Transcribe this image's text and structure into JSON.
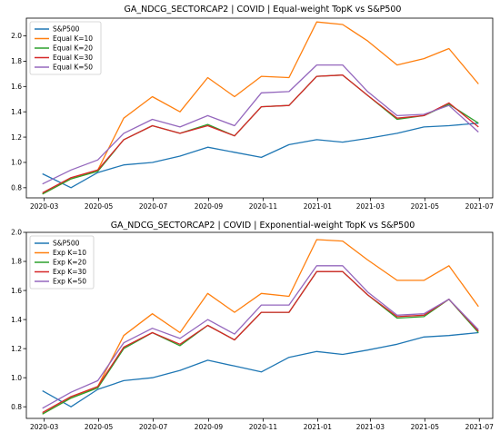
{
  "chart_data": [
    {
      "type": "line",
      "title": "GA_NDCG_SECTORCAP2 | COVID | Equal-weight TopK vs S&P500",
      "x": [
        "2020-02-28",
        "2020-03-31",
        "2020-04-30",
        "2020-05-29",
        "2020-06-30",
        "2020-07-31",
        "2020-08-31",
        "2020-09-30",
        "2020-10-30",
        "2020-11-30",
        "2020-12-31",
        "2021-01-29",
        "2021-02-26",
        "2021-03-31",
        "2021-04-30",
        "2021-05-28",
        "2021-06-30"
      ],
      "xticks": [
        "2020-03",
        "2020-05",
        "2020-07",
        "2020-09",
        "2020-11",
        "2021-01",
        "2021-03",
        "2021-05",
        "2021-07"
      ],
      "yticks": [
        "0.8",
        "1.0",
        "1.2",
        "1.4",
        "1.6",
        "1.8",
        "2.0"
      ],
      "ylim": [
        0.72,
        2.14
      ],
      "legend_loc": "upper-left",
      "grid": false,
      "series": [
        {
          "name": "S&P500",
          "color": "#1f77b4",
          "values": [
            0.91,
            0.8,
            0.92,
            0.98,
            1.0,
            1.05,
            1.12,
            1.08,
            1.04,
            1.14,
            1.18,
            1.16,
            1.19,
            1.23,
            1.28,
            1.29,
            1.31
          ]
        },
        {
          "name": "Equal K=10",
          "color": "#ff7f0e",
          "values": [
            0.75,
            0.87,
            0.94,
            1.35,
            1.52,
            1.4,
            1.67,
            1.52,
            1.68,
            1.67,
            2.11,
            2.09,
            1.96,
            1.77,
            1.82,
            1.9,
            1.62
          ]
        },
        {
          "name": "Equal K=20",
          "color": "#2ca02c",
          "values": [
            0.75,
            0.87,
            0.93,
            1.18,
            1.29,
            1.23,
            1.3,
            1.21,
            1.44,
            1.45,
            1.68,
            1.69,
            1.53,
            1.34,
            1.37,
            1.46,
            1.31
          ]
        },
        {
          "name": "Equal K=30",
          "color": "#d62728",
          "values": [
            0.76,
            0.88,
            0.94,
            1.18,
            1.29,
            1.23,
            1.29,
            1.21,
            1.44,
            1.45,
            1.68,
            1.69,
            1.53,
            1.35,
            1.37,
            1.47,
            1.28
          ]
        },
        {
          "name": "Equal K=50",
          "color": "#9467bd",
          "values": [
            0.83,
            0.94,
            1.02,
            1.23,
            1.34,
            1.28,
            1.37,
            1.29,
            1.55,
            1.56,
            1.77,
            1.77,
            1.56,
            1.37,
            1.38,
            1.45,
            1.24
          ]
        }
      ]
    },
    {
      "type": "line",
      "title": "GA_NDCG_SECTORCAP2 | COVID | Exponential-weight TopK vs S&P500",
      "x": [
        "2020-02-28",
        "2020-03-31",
        "2020-04-30",
        "2020-05-29",
        "2020-06-30",
        "2020-07-31",
        "2020-08-31",
        "2020-09-30",
        "2020-10-30",
        "2020-11-30",
        "2020-12-31",
        "2021-01-29",
        "2021-02-26",
        "2021-03-31",
        "2021-04-30",
        "2021-05-28",
        "2021-06-30"
      ],
      "xticks": [
        "2020-03",
        "2020-05",
        "2020-07",
        "2020-09",
        "2020-11",
        "2021-01",
        "2021-03",
        "2021-05",
        "2021-07"
      ],
      "yticks": [
        "0.8",
        "1.0",
        "1.2",
        "1.4",
        "1.6",
        "1.8",
        "2.0"
      ],
      "ylim": [
        0.72,
        2.0
      ],
      "legend_loc": "upper-left",
      "grid": false,
      "series": [
        {
          "name": "S&P500",
          "color": "#1f77b4",
          "values": [
            0.91,
            0.8,
            0.92,
            0.98,
            1.0,
            1.05,
            1.12,
            1.08,
            1.04,
            1.14,
            1.18,
            1.16,
            1.19,
            1.23,
            1.28,
            1.29,
            1.31
          ]
        },
        {
          "name": "Exp K=10",
          "color": "#ff7f0e",
          "values": [
            0.75,
            0.86,
            0.94,
            1.29,
            1.44,
            1.31,
            1.58,
            1.45,
            1.58,
            1.56,
            1.95,
            1.94,
            1.81,
            1.67,
            1.67,
            1.77,
            1.49
          ]
        },
        {
          "name": "Exp K=20",
          "color": "#2ca02c",
          "values": [
            0.75,
            0.86,
            0.93,
            1.2,
            1.31,
            1.22,
            1.36,
            1.26,
            1.45,
            1.45,
            1.73,
            1.73,
            1.57,
            1.41,
            1.42,
            1.54,
            1.31
          ]
        },
        {
          "name": "Exp K=30",
          "color": "#d62728",
          "values": [
            0.76,
            0.87,
            0.94,
            1.21,
            1.31,
            1.23,
            1.36,
            1.26,
            1.45,
            1.45,
            1.73,
            1.73,
            1.57,
            1.42,
            1.43,
            1.54,
            1.32
          ]
        },
        {
          "name": "Exp K=50",
          "color": "#9467bd",
          "values": [
            0.79,
            0.9,
            0.98,
            1.24,
            1.34,
            1.27,
            1.4,
            1.3,
            1.5,
            1.5,
            1.77,
            1.77,
            1.59,
            1.43,
            1.44,
            1.54,
            1.33
          ]
        }
      ]
    }
  ]
}
